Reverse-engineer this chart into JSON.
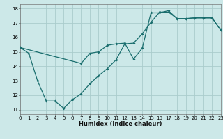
{
  "xlabel": "Humidex (Indice chaleur)",
  "bg_color": "#cce8e8",
  "grid_color": "#aacccc",
  "line_color": "#1a6e6e",
  "xlim": [
    0,
    23
  ],
  "ylim": [
    10.7,
    18.3
  ],
  "xticks": [
    0,
    1,
    2,
    3,
    4,
    5,
    6,
    7,
    8,
    9,
    10,
    11,
    12,
    13,
    14,
    15,
    16,
    17,
    18,
    19,
    20,
    21,
    22,
    23
  ],
  "yticks": [
    11,
    12,
    13,
    14,
    15,
    16,
    17,
    18
  ],
  "line1_x": [
    0,
    1,
    2,
    3,
    4,
    5,
    6,
    7,
    8,
    9,
    10,
    11,
    12,
    13,
    14,
    15,
    16,
    17,
    18,
    19,
    20,
    21,
    22,
    23
  ],
  "line1_y": [
    15.3,
    14.9,
    13.0,
    11.6,
    11.6,
    11.1,
    11.7,
    12.1,
    12.8,
    13.35,
    13.85,
    14.45,
    15.55,
    15.6,
    16.25,
    17.05,
    17.75,
    17.75,
    17.3,
    17.3,
    17.35,
    17.35,
    17.35,
    16.5
  ],
  "line2_x": [
    0,
    7,
    8,
    9,
    10,
    11,
    12,
    13,
    14,
    15,
    16,
    17,
    18,
    19,
    20,
    21,
    22,
    23
  ],
  "line2_y": [
    15.3,
    14.2,
    14.9,
    15.0,
    15.45,
    15.55,
    15.6,
    14.5,
    15.25,
    17.7,
    17.7,
    17.85,
    17.3,
    17.3,
    17.35,
    17.35,
    17.35,
    16.5
  ]
}
